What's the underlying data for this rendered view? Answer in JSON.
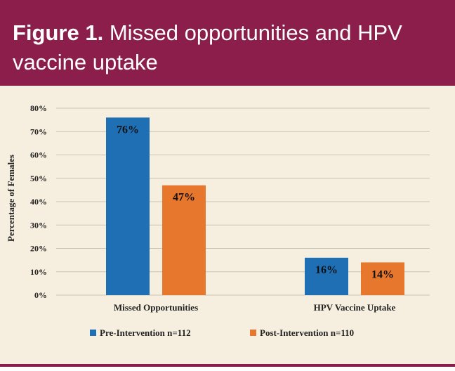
{
  "title": {
    "label": "Figure 1.",
    "text": "Missed opportunities and HPV vaccine uptake"
  },
  "colors": {
    "header_bg": "#8b1e4b",
    "panel_bg": "#f6efdf",
    "pre": "#1f6fb5",
    "post": "#e8772e"
  },
  "chart_data": {
    "type": "bar",
    "title": "",
    "xlabel": "",
    "ylabel": "Percentage of Females",
    "ylim": [
      0,
      80
    ],
    "yticks": [
      "0%",
      "10%",
      "20%",
      "30%",
      "40%",
      "50%",
      "60%",
      "70%",
      "80%"
    ],
    "grid": true,
    "categories": [
      "Missed Opportunities",
      "HPV Vaccine Uptake"
    ],
    "series": [
      {
        "name": "Pre-Intervention n=112",
        "values": [
          76,
          16
        ],
        "labels": [
          "76%",
          "16%"
        ],
        "color": "#1f6fb5"
      },
      {
        "name": "Post-Intervention n=110",
        "values": [
          47,
          14
        ],
        "labels": [
          "47%",
          "14%"
        ],
        "color": "#e8772e"
      }
    ],
    "legend": "bottom"
  }
}
